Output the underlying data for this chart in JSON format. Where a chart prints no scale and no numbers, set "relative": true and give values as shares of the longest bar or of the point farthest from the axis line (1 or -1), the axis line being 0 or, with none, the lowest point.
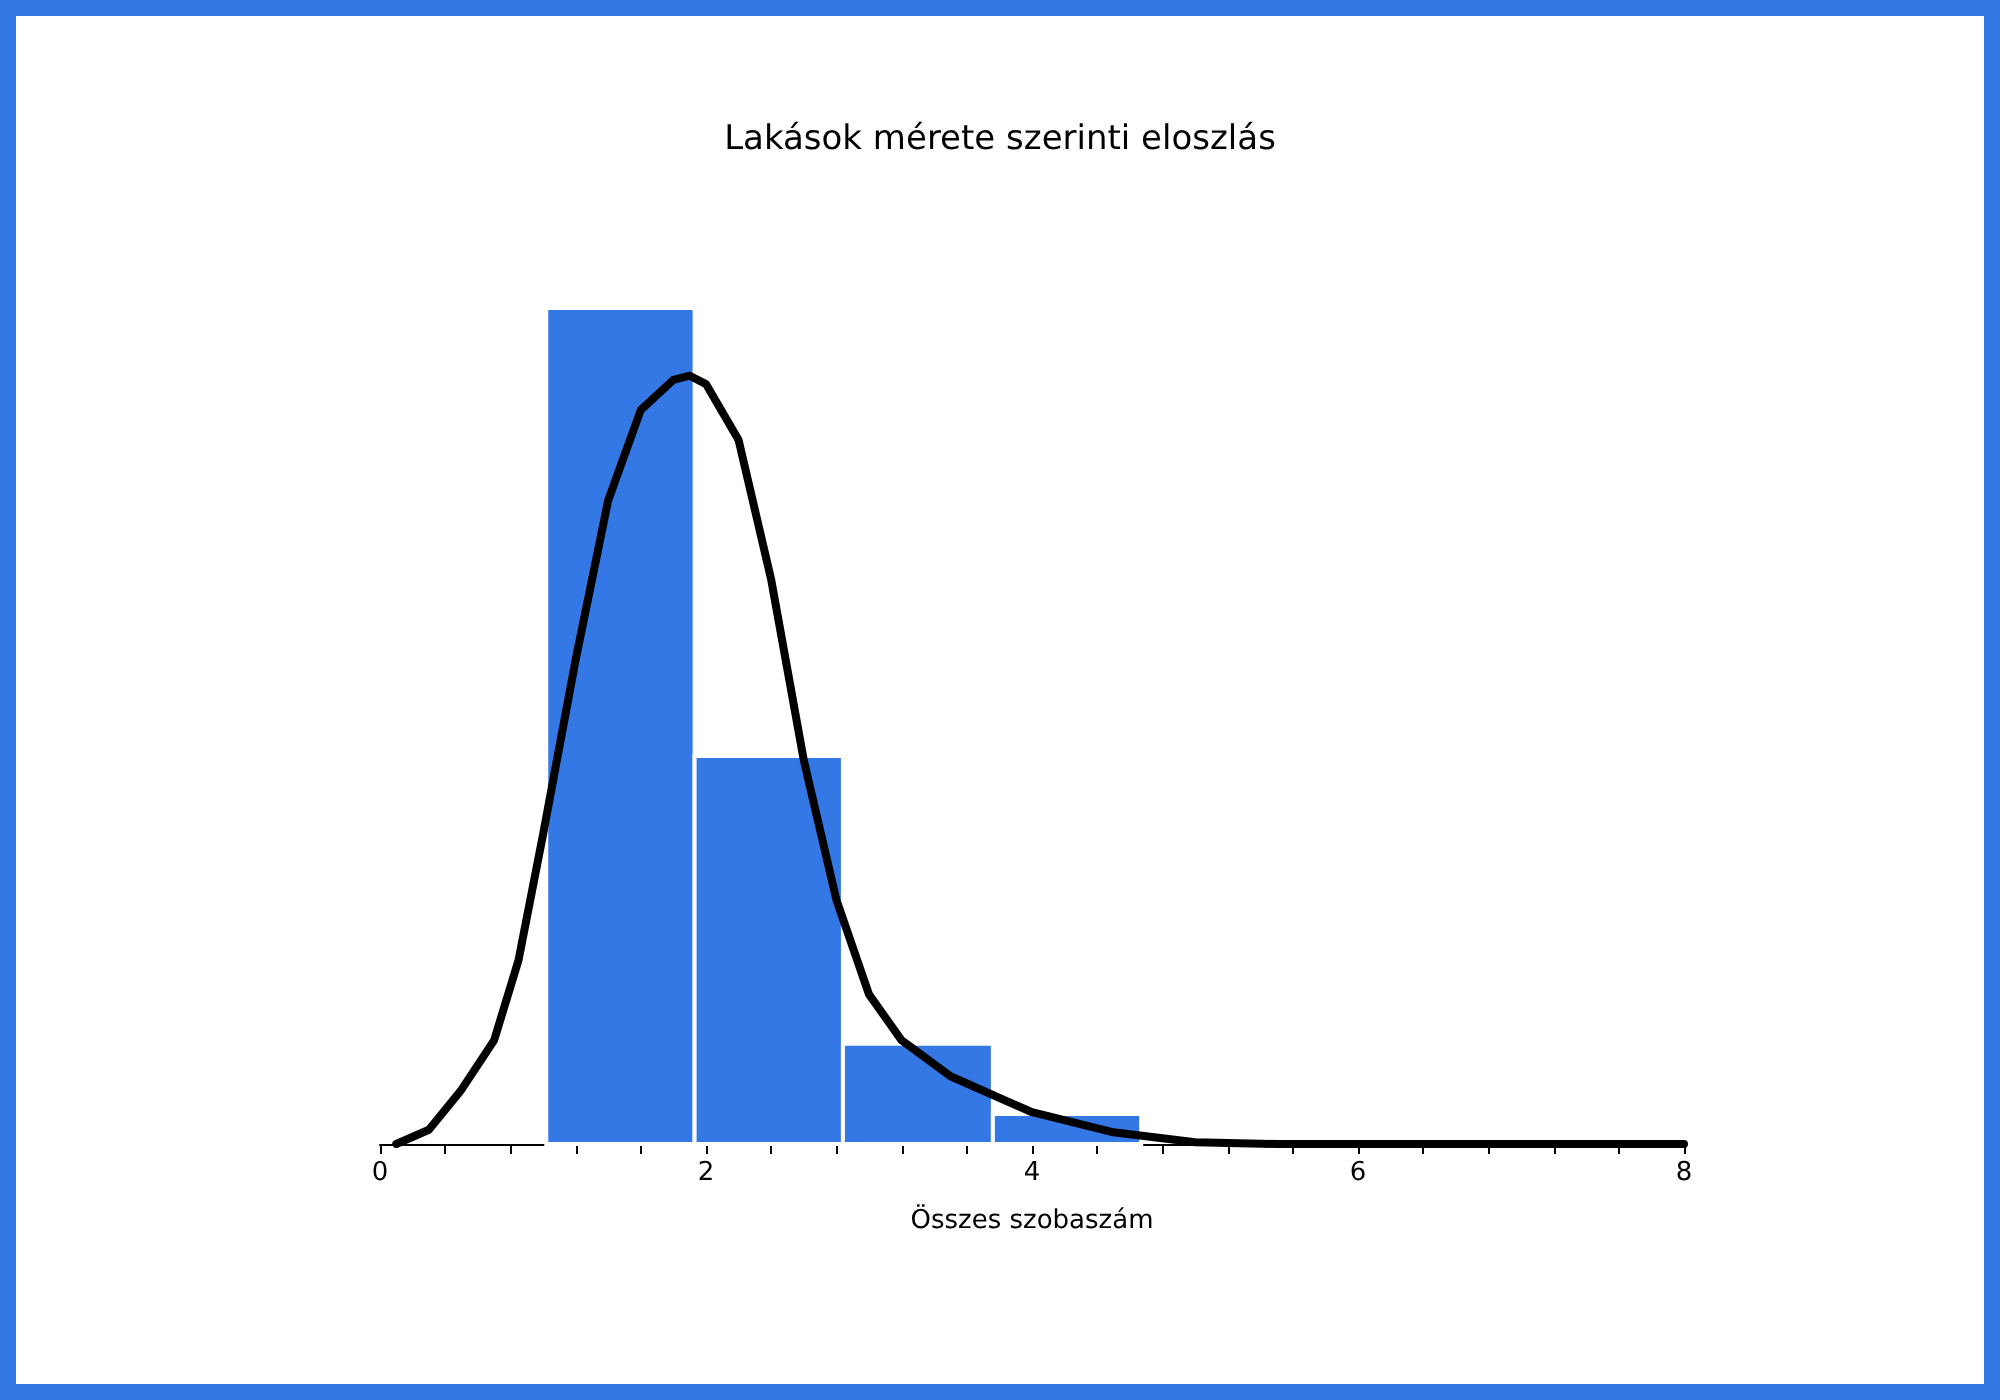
{
  "chart_data": {
    "type": "histogram",
    "title": "Lakások mérete szerinti eloszlás",
    "xlabel": "Összes szobaszám",
    "relative": true,
    "bins": [
      1.02,
      1.93,
      2.84,
      3.76,
      4.67
    ],
    "series": [
      {
        "color": "#3478e5",
        "values": [
          1,
          0.464,
          0.12,
          0.036
        ]
      },
      {
        "type": "line",
        "color": "#000000",
        "x": [
          0.1,
          0.3,
          0.5,
          0.7,
          0.85,
          1.0,
          1.2,
          1.4,
          1.6,
          1.8,
          1.9,
          2.0,
          2.2,
          2.4,
          2.6,
          2.8,
          3.0,
          3.2,
          3.5,
          4.0,
          4.5,
          5.0,
          5.5,
          8.0
        ],
        "values": [
          0,
          0.017,
          0.065,
          0.124,
          0.22,
          0.37,
          0.579,
          0.77,
          0.878,
          0.914,
          0.919,
          0.909,
          0.842,
          0.675,
          0.459,
          0.292,
          0.179,
          0.124,
          0.081,
          0.038,
          0.014,
          0.002,
          0,
          0
        ]
      }
    ],
    "xlim": [
      0,
      8
    ],
    "xticks": [
      0,
      {
        "value": 0.4,
        "label": null
      },
      {
        "value": 0.8,
        "label": null
      },
      {
        "value": 1.2,
        "label": null
      },
      {
        "value": 1.6,
        "label": null
      },
      2,
      {
        "value": 2.4,
        "label": null
      },
      {
        "value": 2.8,
        "label": null
      },
      {
        "value": 3.2,
        "label": null
      },
      {
        "value": 3.6,
        "label": null
      },
      4,
      {
        "value": 4.4,
        "label": null
      },
      {
        "value": 4.8,
        "label": null
      },
      {
        "value": 5.2,
        "label": null
      },
      {
        "value": 5.6,
        "label": null
      },
      6,
      {
        "value": 6.4,
        "label": null
      },
      {
        "value": 6.8,
        "label": null
      },
      {
        "value": 7.2,
        "label": null
      },
      {
        "value": 7.6,
        "label": null
      },
      8
    ]
  }
}
